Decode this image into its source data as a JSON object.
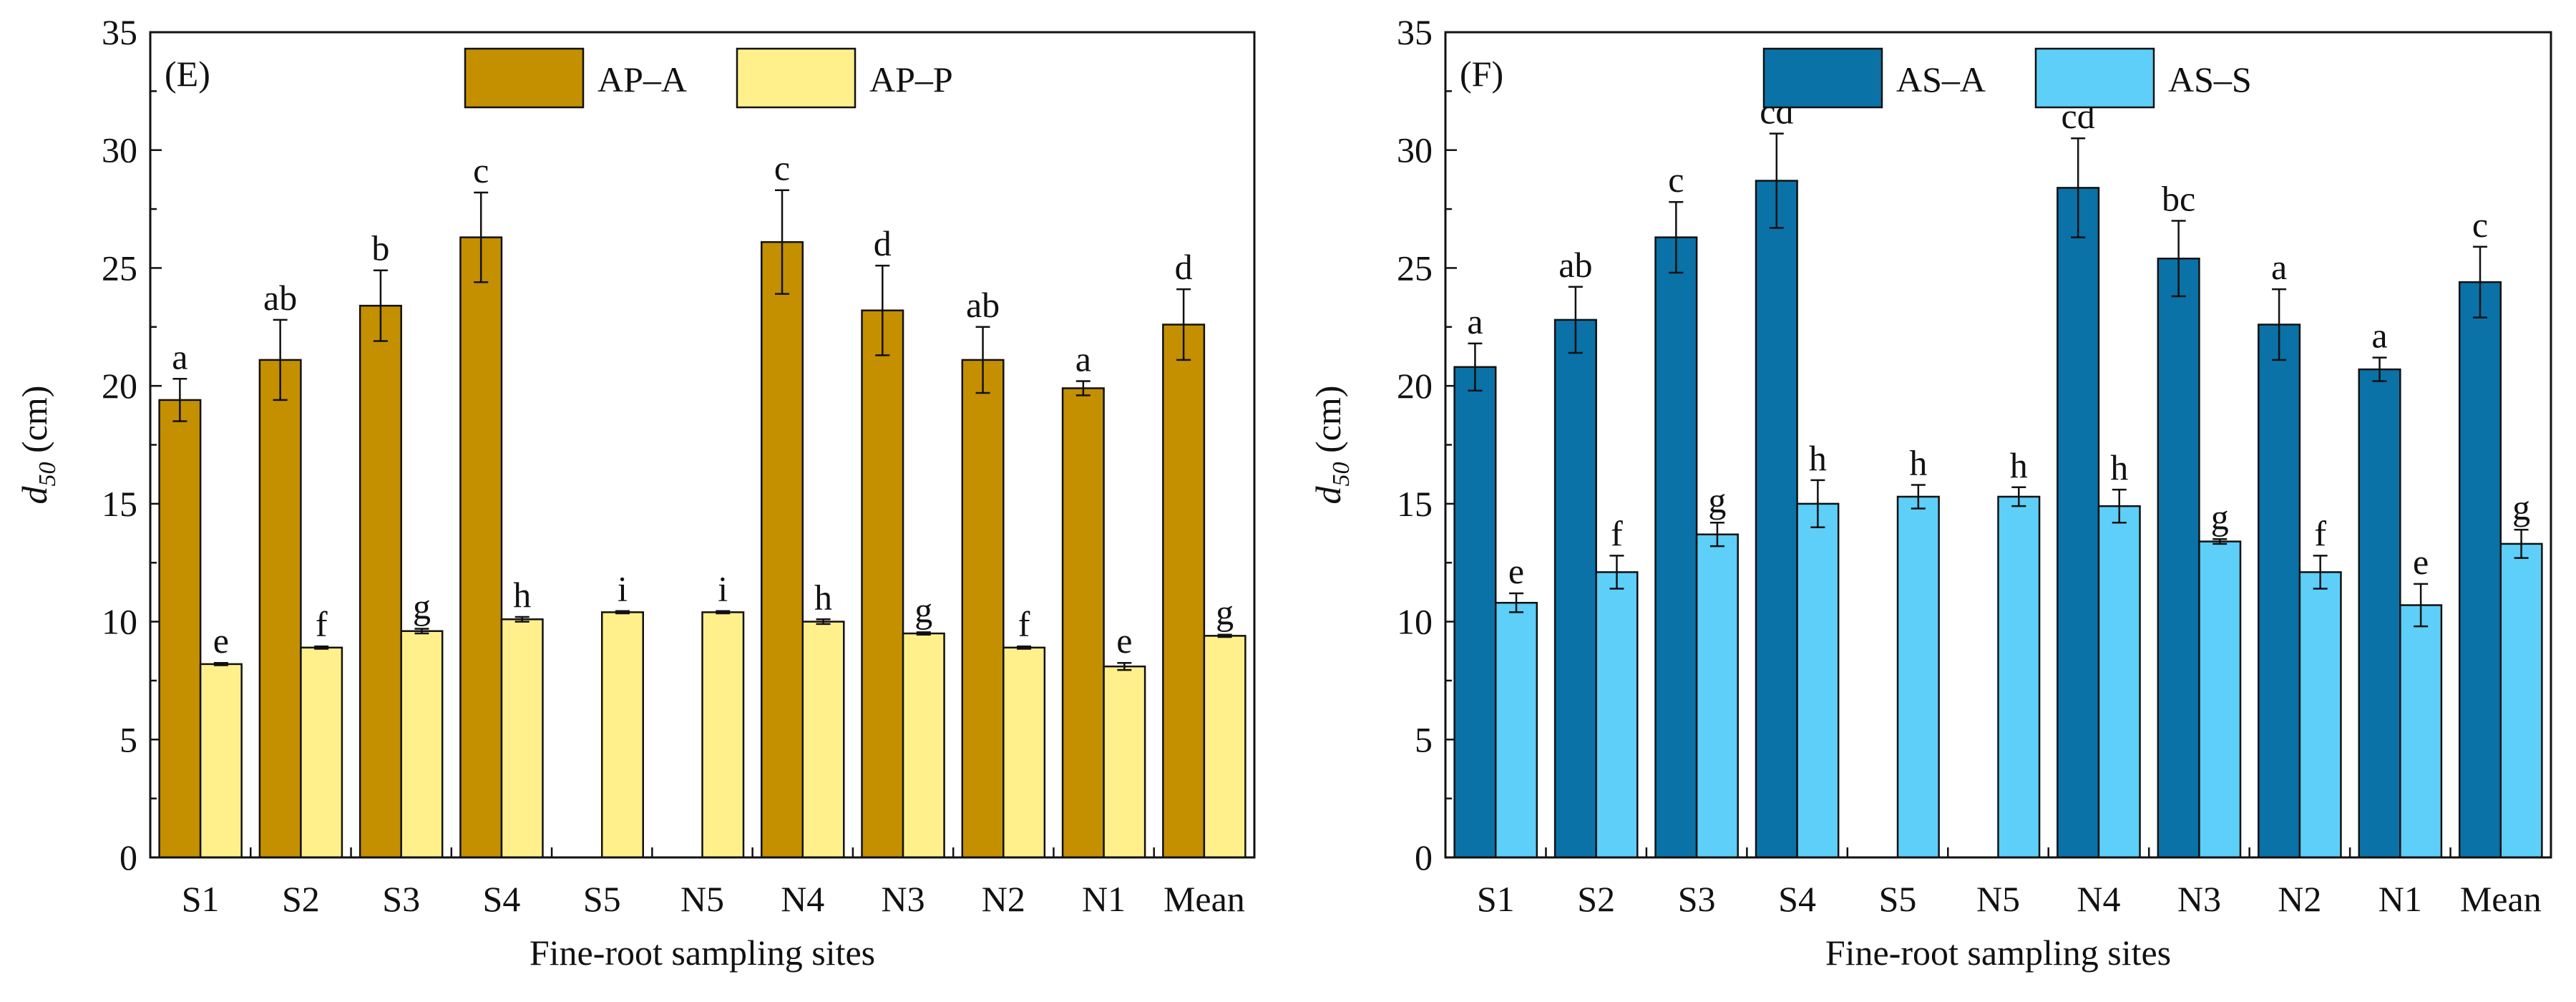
{
  "chart_data": [
    {
      "type": "bar",
      "panel_label": "(E)",
      "categories": [
        "S1",
        "S2",
        "S3",
        "S4",
        "S5",
        "N5",
        "N4",
        "N3",
        "N2",
        "N1",
        "Mean"
      ],
      "xlabel": "Fine-root sampling sites",
      "ylabel_main": "d",
      "ylabel_sub": "50",
      "ylabel_unit": "(cm)",
      "ylim": [
        0,
        35
      ],
      "yticks": [
        0,
        5,
        10,
        15,
        20,
        25,
        30,
        35
      ],
      "legend_position": "top-center",
      "series": [
        {
          "name": "AP–A",
          "color": "#c49000",
          "values": [
            19.4,
            21.1,
            23.4,
            26.3,
            null,
            null,
            26.1,
            23.2,
            21.1,
            19.9,
            22.6
          ],
          "errors": [
            0.9,
            1.7,
            1.5,
            1.9,
            null,
            null,
            2.2,
            1.9,
            1.4,
            0.3,
            1.5
          ],
          "letters": [
            "a",
            "ab",
            "b",
            "c",
            "",
            "",
            "c",
            "d",
            "ab",
            "a",
            "d"
          ]
        },
        {
          "name": "AP–P",
          "color": "#fff08c",
          "values": [
            8.2,
            8.9,
            9.6,
            10.1,
            10.4,
            10.4,
            10.0,
            9.5,
            8.9,
            8.1,
            9.4
          ],
          "errors": [
            0.05,
            0.05,
            0.1,
            0.1,
            0.05,
            0.05,
            0.1,
            0.05,
            0.05,
            0.15,
            0.05
          ],
          "letters": [
            "e",
            "f",
            "g",
            "h",
            "i",
            "i",
            "h",
            "g",
            "f",
            "e",
            "g"
          ]
        }
      ]
    },
    {
      "type": "bar",
      "panel_label": "(F)",
      "categories": [
        "S1",
        "S2",
        "S3",
        "S4",
        "S5",
        "N5",
        "N4",
        "N3",
        "N2",
        "N1",
        "Mean"
      ],
      "xlabel": "Fine-root sampling sites",
      "ylabel_main": "d",
      "ylabel_sub": "50",
      "ylabel_unit": "(cm)",
      "ylim": [
        0,
        35
      ],
      "yticks": [
        0,
        5,
        10,
        15,
        20,
        25,
        30,
        35
      ],
      "legend_position": "top-center",
      "series": [
        {
          "name": "AS–A",
          "color": "#0a72a6",
          "values": [
            20.8,
            22.8,
            26.3,
            28.7,
            null,
            null,
            28.4,
            25.4,
            22.6,
            20.7,
            24.4
          ],
          "errors": [
            1.0,
            1.4,
            1.5,
            2.0,
            null,
            null,
            2.1,
            1.6,
            1.5,
            0.5,
            1.5
          ],
          "letters": [
            "a",
            "ab",
            "c",
            "cd",
            "",
            "",
            "cd",
            "bc",
            "a",
            "a",
            "c"
          ]
        },
        {
          "name": "AS–S",
          "color": "#5dcff8",
          "values": [
            10.8,
            12.1,
            13.7,
            15.0,
            15.3,
            15.3,
            14.9,
            13.4,
            12.1,
            10.7,
            13.3
          ],
          "errors": [
            0.4,
            0.7,
            0.5,
            1.0,
            0.5,
            0.4,
            0.7,
            0.1,
            0.7,
            0.9,
            0.6
          ],
          "letters": [
            "e",
            "f",
            "g",
            "h",
            "h",
            "h",
            "h",
            "g",
            "f",
            "e",
            "g"
          ]
        }
      ]
    }
  ]
}
